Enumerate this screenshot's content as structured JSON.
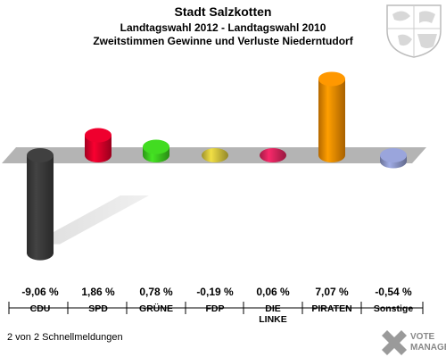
{
  "chart_data": {
    "type": "bar",
    "title": "Stadt Salzkotten",
    "subtitle": "Landtagswahl 2012 - Landtagswahl 2010",
    "subtitle2": "Zweitstimmen Gewinne und Verluste Niederntudorf",
    "categories": [
      "CDU",
      "SPD",
      "GRÜNE",
      "FDP",
      "DIE LINKE",
      "PIRATEN",
      "Sonstige"
    ],
    "values": [
      -9.06,
      1.86,
      0.78,
      -0.19,
      0.06,
      7.07,
      -0.54
    ],
    "value_labels": [
      "-9,06 %",
      "1,86 %",
      "0,78 %",
      "-0,19 %",
      "0,06 %",
      "7,07 %",
      "-0,54 %"
    ],
    "colors": [
      "#3a3a3a",
      "#d9002a",
      "#3cc81e",
      "#d2c23c",
      "#d8245c",
      "#f08a00",
      "#8c96c8"
    ]
  },
  "footer": {
    "note": "2 von 2 Schnellmeldungen",
    "logo_line1": "VOTE",
    "logo_line2": "MANAGER"
  },
  "icons": {
    "crest": "nrw-coat-of-arms-icon",
    "logo": "votemanager-logo-icon"
  }
}
